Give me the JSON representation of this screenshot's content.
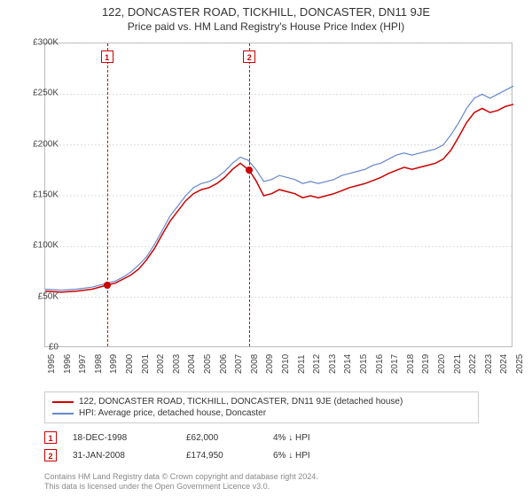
{
  "title": "122, DONCASTER ROAD, TICKHILL, DONCASTER, DN11 9JE",
  "subtitle": "Price paid vs. HM Land Registry's House Price Index (HPI)",
  "chart": {
    "type": "line",
    "background_color": "#ffffff",
    "grid_color": "#dddddd",
    "border_color": "#bbbbbb",
    "xlim": [
      1995,
      2025
    ],
    "ylim": [
      0,
      300000
    ],
    "ytick_step": 50000,
    "ytick_labels": [
      "£0",
      "£50K",
      "£100K",
      "£150K",
      "£200K",
      "£250K",
      "£300K"
    ],
    "xtick_step": 1,
    "xtick_labels": [
      "1995",
      "1996",
      "1997",
      "1998",
      "1999",
      "2000",
      "2001",
      "2002",
      "2003",
      "2004",
      "2005",
      "2006",
      "2007",
      "2008",
      "2009",
      "2010",
      "2011",
      "2012",
      "2013",
      "2014",
      "2015",
      "2016",
      "2017",
      "2018",
      "2019",
      "2020",
      "2021",
      "2022",
      "2023",
      "2024",
      "2025"
    ],
    "series": [
      {
        "name": "property",
        "label": "122, DONCASTER ROAD, TICKHILL, DONCASTER, DN11 9JE (detached house)",
        "color": "#cc0000",
        "line_width": 1.5,
        "data": [
          [
            1995,
            56000
          ],
          [
            1996,
            55000
          ],
          [
            1997,
            56000
          ],
          [
            1998,
            58000
          ],
          [
            1998.96,
            62000
          ],
          [
            1999.5,
            64000
          ],
          [
            2000,
            68000
          ],
          [
            2000.5,
            72000
          ],
          [
            2001,
            78000
          ],
          [
            2001.5,
            87000
          ],
          [
            2002,
            98000
          ],
          [
            2002.5,
            112000
          ],
          [
            2003,
            125000
          ],
          [
            2003.5,
            135000
          ],
          [
            2004,
            145000
          ],
          [
            2004.5,
            152000
          ],
          [
            2005,
            156000
          ],
          [
            2005.5,
            158000
          ],
          [
            2006,
            162000
          ],
          [
            2006.5,
            168000
          ],
          [
            2007,
            176000
          ],
          [
            2007.5,
            182000
          ],
          [
            2008.08,
            174950
          ],
          [
            2008.5,
            165000
          ],
          [
            2009,
            150000
          ],
          [
            2009.5,
            152000
          ],
          [
            2010,
            156000
          ],
          [
            2010.5,
            154000
          ],
          [
            2011,
            152000
          ],
          [
            2011.5,
            148000
          ],
          [
            2012,
            150000
          ],
          [
            2012.5,
            148000
          ],
          [
            2013,
            150000
          ],
          [
            2013.5,
            152000
          ],
          [
            2014,
            155000
          ],
          [
            2014.5,
            158000
          ],
          [
            2015,
            160000
          ],
          [
            2015.5,
            162000
          ],
          [
            2016,
            165000
          ],
          [
            2016.5,
            168000
          ],
          [
            2017,
            172000
          ],
          [
            2017.5,
            175000
          ],
          [
            2018,
            178000
          ],
          [
            2018.5,
            176000
          ],
          [
            2019,
            178000
          ],
          [
            2019.5,
            180000
          ],
          [
            2020,
            182000
          ],
          [
            2020.5,
            186000
          ],
          [
            2021,
            195000
          ],
          [
            2021.5,
            208000
          ],
          [
            2022,
            222000
          ],
          [
            2022.5,
            232000
          ],
          [
            2023,
            236000
          ],
          [
            2023.5,
            232000
          ],
          [
            2024,
            234000
          ],
          [
            2024.5,
            238000
          ],
          [
            2025,
            240000
          ]
        ]
      },
      {
        "name": "hpi",
        "label": "HPI: Average price, detached house, Doncaster",
        "color": "#6688cc",
        "line_width": 1.2,
        "data": [
          [
            1995,
            58000
          ],
          [
            1996,
            57000
          ],
          [
            1997,
            58000
          ],
          [
            1998,
            60000
          ],
          [
            1999,
            64000
          ],
          [
            1999.5,
            66000
          ],
          [
            2000,
            70000
          ],
          [
            2000.5,
            75000
          ],
          [
            2001,
            82000
          ],
          [
            2001.5,
            90000
          ],
          [
            2002,
            102000
          ],
          [
            2002.5,
            116000
          ],
          [
            2003,
            130000
          ],
          [
            2003.5,
            140000
          ],
          [
            2004,
            150000
          ],
          [
            2004.5,
            158000
          ],
          [
            2005,
            162000
          ],
          [
            2005.5,
            164000
          ],
          [
            2006,
            168000
          ],
          [
            2006.5,
            174000
          ],
          [
            2007,
            182000
          ],
          [
            2007.5,
            188000
          ],
          [
            2008,
            185000
          ],
          [
            2008.5,
            176000
          ],
          [
            2009,
            164000
          ],
          [
            2009.5,
            166000
          ],
          [
            2010,
            170000
          ],
          [
            2010.5,
            168000
          ],
          [
            2011,
            166000
          ],
          [
            2011.5,
            162000
          ],
          [
            2012,
            164000
          ],
          [
            2012.5,
            162000
          ],
          [
            2013,
            164000
          ],
          [
            2013.5,
            166000
          ],
          [
            2014,
            170000
          ],
          [
            2014.5,
            172000
          ],
          [
            2015,
            174000
          ],
          [
            2015.5,
            176000
          ],
          [
            2016,
            180000
          ],
          [
            2016.5,
            182000
          ],
          [
            2017,
            186000
          ],
          [
            2017.5,
            190000
          ],
          [
            2018,
            192000
          ],
          [
            2018.5,
            190000
          ],
          [
            2019,
            192000
          ],
          [
            2019.5,
            194000
          ],
          [
            2020,
            196000
          ],
          [
            2020.5,
            200000
          ],
          [
            2021,
            210000
          ],
          [
            2021.5,
            222000
          ],
          [
            2022,
            236000
          ],
          [
            2022.5,
            246000
          ],
          [
            2023,
            250000
          ],
          [
            2023.5,
            246000
          ],
          [
            2024,
            250000
          ],
          [
            2024.5,
            254000
          ],
          [
            2025,
            258000
          ]
        ]
      }
    ],
    "markers": [
      {
        "n": "1",
        "x": 1998.96,
        "y": 62000,
        "color": "#cc0000"
      },
      {
        "n": "2",
        "x": 2008.08,
        "y": 174950,
        "color": "#cc0000"
      }
    ]
  },
  "sales": [
    {
      "n": "1",
      "date": "18-DEC-1998",
      "price": "£62,000",
      "diff": "4% ↓ HPI",
      "color": "#cc0000"
    },
    {
      "n": "2",
      "date": "31-JAN-2008",
      "price": "£174,950",
      "diff": "6% ↓ HPI",
      "color": "#cc0000"
    }
  ],
  "footer": {
    "line1": "Contains HM Land Registry data © Crown copyright and database right 2024.",
    "line2": "This data is licensed under the Open Government Licence v3.0."
  }
}
